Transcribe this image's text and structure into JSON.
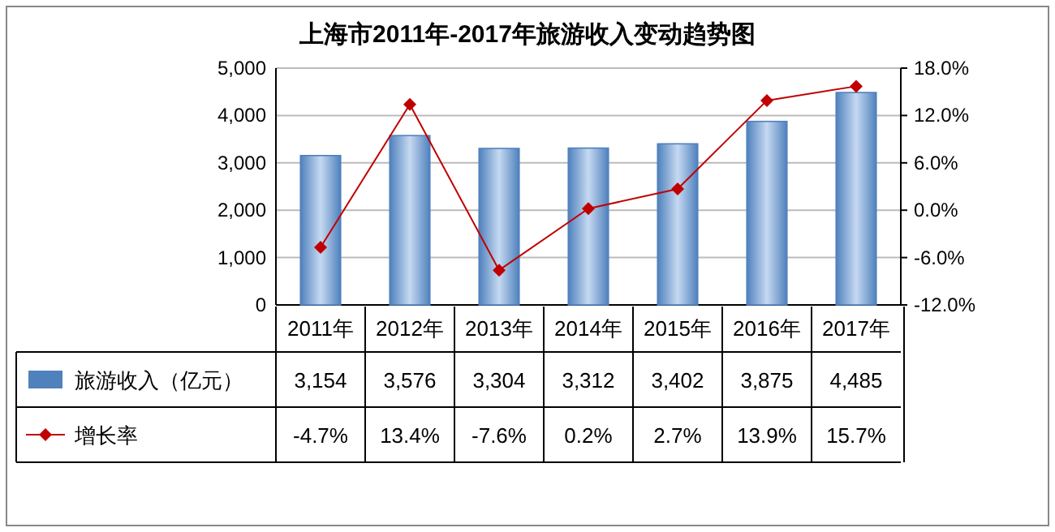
{
  "chart_data": {
    "type": "bar",
    "title": "上海市2011年-2017年旅游收入变动趋势图",
    "categories": [
      "2011年",
      "2012年",
      "2013年",
      "2014年",
      "2015年",
      "2016年",
      "2017年"
    ],
    "series": [
      {
        "name": "旅游收入（亿元）",
        "color": "#4f81bd",
        "values": [
          3154,
          3576,
          3304,
          3312,
          3402,
          3875,
          4485
        ],
        "value_labels": [
          "3,154",
          "3,576",
          "3,304",
          "3,312",
          "3,402",
          "3,875",
          "4,485"
        ]
      },
      {
        "name": "增长率",
        "type": "line",
        "axis": "y2",
        "color": "#c00000",
        "marker": "diamond",
        "values": [
          -4.7,
          13.4,
          -7.6,
          0.2,
          2.7,
          13.9,
          15.7
        ],
        "value_labels": [
          "-4.7%",
          "13.4%",
          "-7.6%",
          "0.2%",
          "2.7%",
          "13.9%",
          "15.7%"
        ]
      }
    ],
    "ylim": [
      0,
      5000
    ],
    "yticks": [
      {
        "value": 0,
        "label": "0"
      },
      {
        "value": 1000,
        "label": "1,000"
      },
      {
        "value": 2000,
        "label": "2,000"
      },
      {
        "value": 3000,
        "label": "3,000"
      },
      {
        "value": 4000,
        "label": "4,000"
      },
      {
        "value": 5000,
        "label": "5,000"
      }
    ],
    "y2lim": [
      -12,
      18
    ],
    "y2ticks": [
      {
        "value": -12,
        "label": "-12.0%"
      },
      {
        "value": -6,
        "label": "-6.0%"
      },
      {
        "value": 0,
        "label": "0.0%"
      },
      {
        "value": 6,
        "label": "6.0%"
      },
      {
        "value": 12,
        "label": "12.0%"
      },
      {
        "value": 18,
        "label": "18.0%"
      }
    ],
    "grid": "y",
    "legend": "bottom left"
  }
}
